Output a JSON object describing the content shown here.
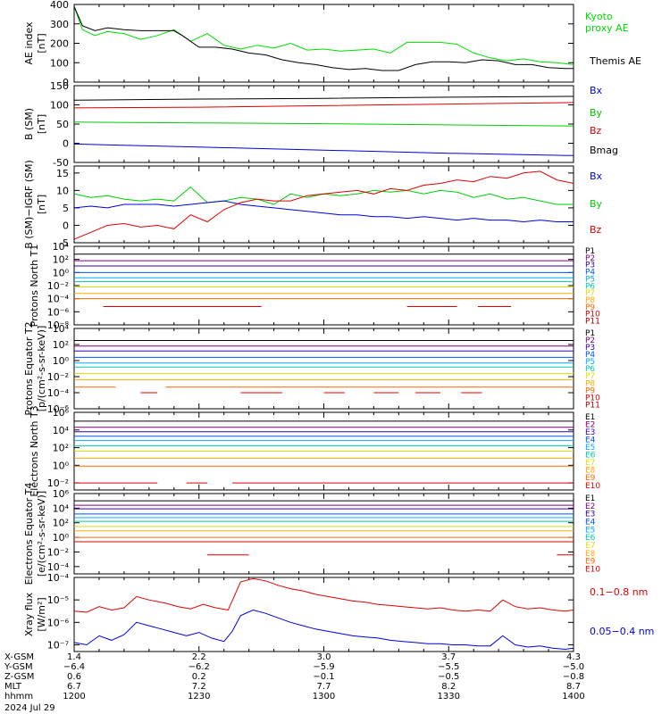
{
  "chart_data": [
    {
      "type": "line",
      "ylabel": "AE index [nT]",
      "yticks": [
        "400",
        "300",
        "200",
        "100",
        "0"
      ],
      "ylim": [
        0,
        400
      ],
      "legend": [
        "Kyoto proxy AE",
        "Themis AE"
      ],
      "series": [
        {
          "name": "Kyoto proxy AE",
          "color": "#00dd00",
          "x": [
            0,
            2,
            5,
            8,
            12,
            16,
            20,
            24,
            28,
            32,
            36,
            40,
            44,
            48,
            52,
            56,
            60,
            64,
            68,
            72,
            76,
            80,
            84,
            88,
            92,
            96,
            100,
            104,
            108,
            112,
            116,
            120
          ],
          "y": [
            390,
            270,
            240,
            260,
            250,
            220,
            240,
            270,
            210,
            250,
            190,
            170,
            190,
            175,
            200,
            165,
            170,
            160,
            165,
            170,
            150,
            205,
            205,
            205,
            195,
            150,
            125,
            110,
            120,
            105,
            100,
            90
          ]
        },
        {
          "name": "Themis AE",
          "color": "#000000",
          "x": [
            0,
            2,
            5,
            8,
            12,
            16,
            20,
            24,
            26,
            30,
            34,
            38,
            42,
            46,
            50,
            54,
            58,
            62,
            66,
            70,
            74,
            78,
            82,
            86,
            90,
            94,
            98,
            102,
            106,
            110,
            114,
            118,
            120
          ],
          "y": [
            390,
            290,
            265,
            280,
            270,
            265,
            265,
            265,
            240,
            180,
            180,
            170,
            150,
            140,
            115,
            100,
            90,
            75,
            65,
            70,
            60,
            60,
            90,
            105,
            105,
            100,
            115,
            110,
            90,
            90,
            75,
            70,
            70
          ]
        }
      ]
    },
    {
      "type": "line",
      "ylabel": "B (SM) [nT]",
      "yticks": [
        "150",
        "100",
        "50",
        "0",
        "-50"
      ],
      "ylim": [
        -50,
        150
      ],
      "legend": [
        "Bx",
        "By",
        "Bz",
        "Bmag"
      ],
      "series": [
        {
          "name": "Bmag",
          "color": "#000000",
          "x": [
            0,
            30,
            60,
            90,
            120
          ],
          "y": [
            112,
            115,
            117,
            120,
            122
          ]
        },
        {
          "name": "Bz",
          "color": "#dd0000",
          "x": [
            0,
            30,
            60,
            90,
            120
          ],
          "y": [
            92,
            94,
            98,
            102,
            106
          ]
        },
        {
          "name": "By",
          "color": "#00cc00",
          "x": [
            0,
            30,
            60,
            90,
            120
          ],
          "y": [
            55,
            53,
            51,
            48,
            45
          ]
        },
        {
          "name": "Bx",
          "color": "#0000dd",
          "x": [
            0,
            30,
            60,
            90,
            120
          ],
          "y": [
            -2,
            -10,
            -18,
            -26,
            -32
          ]
        }
      ]
    },
    {
      "type": "line",
      "ylabel": "B (SM)−IGRF (SM) [nT]",
      "yticks": [
        "15",
        "10",
        "5",
        "0",
        "-5"
      ],
      "ylim": [
        -5,
        17
      ],
      "legend": [
        "Bx",
        "By",
        "Bz"
      ],
      "series": [
        {
          "name": "By",
          "color": "#00cc00",
          "x": [
            0,
            4,
            8,
            12,
            16,
            20,
            24,
            28,
            32,
            36,
            40,
            44,
            48,
            52,
            56,
            60,
            64,
            68,
            72,
            76,
            80,
            84,
            88,
            92,
            96,
            100,
            104,
            108,
            112,
            116,
            120
          ],
          "y": [
            9,
            8,
            8.5,
            7.5,
            7,
            7.5,
            7,
            11,
            6.5,
            7,
            8,
            7.5,
            6,
            9,
            8,
            9,
            8.5,
            9,
            10,
            9.5,
            10,
            9,
            10,
            9.5,
            8,
            9,
            7.5,
            8,
            7,
            6,
            6
          ]
        },
        {
          "name": "Bx",
          "color": "#0000dd",
          "x": [
            0,
            4,
            8,
            12,
            16,
            20,
            24,
            28,
            32,
            36,
            40,
            44,
            48,
            52,
            56,
            60,
            64,
            68,
            72,
            76,
            80,
            84,
            88,
            92,
            96,
            100,
            104,
            108,
            112,
            116,
            120
          ],
          "y": [
            5,
            5.5,
            5,
            6,
            6,
            6,
            5.5,
            6,
            6.5,
            7,
            6,
            5.5,
            5,
            4.5,
            4,
            3.5,
            3,
            3,
            2.5,
            2.5,
            2,
            2.5,
            2,
            1.5,
            2,
            1.5,
            1.5,
            1,
            1.5,
            1,
            1
          ]
        },
        {
          "name": "Bz",
          "color": "#dd0000",
          "x": [
            0,
            4,
            8,
            12,
            16,
            20,
            24,
            28,
            32,
            36,
            40,
            44,
            48,
            52,
            56,
            60,
            64,
            68,
            72,
            76,
            80,
            84,
            88,
            92,
            96,
            100,
            104,
            108,
            112,
            116,
            120
          ],
          "y": [
            -4,
            -2,
            0,
            0.5,
            -0.5,
            0,
            -1,
            3,
            1,
            4.5,
            6.5,
            7.5,
            7,
            7,
            8.5,
            9,
            9.5,
            10,
            9,
            10.5,
            10,
            11.5,
            12,
            13,
            12.5,
            14,
            13.5,
            15,
            15.5,
            13,
            12
          ]
        }
      ]
    },
    {
      "type": "line",
      "ylabel": "Protons North T1",
      "yscale": "log",
      "yticks": [
        "10⁴",
        "10²",
        "10⁰",
        "10⁻²",
        "10⁻⁴",
        "10⁻⁶",
        "10⁻⁸"
      ],
      "ylim": [
        -8,
        4
      ],
      "legend": [
        "P1",
        "P2",
        "P3",
        "P4",
        "P5",
        "P6",
        "P7",
        "P8",
        "P9",
        "P10",
        "P11"
      ],
      "series": [
        {
          "name": "P1",
          "color": "#000000",
          "y_exp": 2.8
        },
        {
          "name": "P2",
          "color": "#7a007a",
          "y_exp": 1.8
        },
        {
          "name": "P3",
          "color": "#3300aa",
          "y_exp": 1.0
        },
        {
          "name": "P4",
          "color": "#0055ff",
          "y_exp": 0.0
        },
        {
          "name": "P5",
          "color": "#00aaff",
          "y_exp": -0.8
        },
        {
          "name": "P6",
          "color": "#00ccaa",
          "y_exp": -1.4
        },
        {
          "name": "P7",
          "color": "#dddd00",
          "y_exp": -2.2
        },
        {
          "name": "P8",
          "color": "#ffaa00",
          "y_exp": -3.2
        },
        {
          "name": "P9",
          "color": "#ff6600",
          "y_exp": -4.0
        },
        {
          "name": "P10",
          "color": "#dd0000",
          "y_exp": -5.2,
          "segments": [
            [
              7,
              45
            ],
            [
              80,
              92
            ],
            [
              97,
              105
            ]
          ]
        },
        {
          "name": "P11",
          "color": "#aa0000",
          "y_exp": -7.5,
          "segments": []
        }
      ]
    },
    {
      "type": "line",
      "ylabel": "Protons Equator T2 [p/(cm²-s-sr-keV)]",
      "yscale": "log",
      "yticks": [
        "10⁴",
        "10²",
        "10⁰",
        "10⁻²",
        "10⁻⁴",
        "10⁻⁶"
      ],
      "ylim": [
        -6,
        4
      ],
      "legend": [
        "P1",
        "P2",
        "P3",
        "P4",
        "P5",
        "P6",
        "P7",
        "P8",
        "P9",
        "P10",
        "P11"
      ],
      "series": [
        {
          "name": "P1",
          "color": "#000000",
          "y_exp": 2.5
        },
        {
          "name": "P2",
          "color": "#7a007a",
          "y_exp": 1.8
        },
        {
          "name": "P3",
          "color": "#3300aa",
          "y_exp": 1.2
        },
        {
          "name": "P4",
          "color": "#0055ff",
          "y_exp": 0.4
        },
        {
          "name": "P5",
          "color": "#00aaff",
          "y_exp": -0.3
        },
        {
          "name": "P6",
          "color": "#00ccaa",
          "y_exp": -0.8
        },
        {
          "name": "P7",
          "color": "#dddd00",
          "y_exp": -1.6
        },
        {
          "name": "P8",
          "color": "#ffaa00",
          "y_exp": -2.4
        },
        {
          "name": "P9",
          "color": "#ff6600",
          "y_exp": -3.3,
          "segments": [
            [
              0,
              10
            ],
            [
              22,
              120
            ]
          ]
        },
        {
          "name": "P10",
          "color": "#dd0000",
          "y_exp": -4.0,
          "segments": [
            [
              16,
              20
            ],
            [
              40,
              50
            ],
            [
              60,
              65
            ],
            [
              72,
              78
            ],
            [
              82,
              88
            ],
            [
              93,
              98
            ]
          ]
        },
        {
          "name": "P11",
          "color": "#aa0000",
          "y_exp": -6.5,
          "segments": []
        }
      ]
    },
    {
      "type": "line",
      "ylabel": "Electrons North T3",
      "yscale": "log",
      "yticks": [
        "10⁶",
        "10⁴",
        "10²",
        "10⁰",
        "10⁻²"
      ],
      "ylim": [
        -2.8,
        6
      ],
      "legend": [
        "E1",
        "E2",
        "E3",
        "E4",
        "E5",
        "E6",
        "E7",
        "E8",
        "E9",
        "E10"
      ],
      "series": [
        {
          "name": "E1",
          "color": "#000000",
          "y_exp": 5.0
        },
        {
          "name": "E2",
          "color": "#7a007a",
          "y_exp": 4.3
        },
        {
          "name": "E3",
          "color": "#3300aa",
          "y_exp": 3.8
        },
        {
          "name": "E4",
          "color": "#0055ff",
          "y_exp": 3.3
        },
        {
          "name": "E5",
          "color": "#00aaff",
          "y_exp": 2.8
        },
        {
          "name": "E6",
          "color": "#00ccaa",
          "y_exp": 2.2
        },
        {
          "name": "E7",
          "color": "#dddd00",
          "y_exp": 1.6
        },
        {
          "name": "E8",
          "color": "#ffaa00",
          "y_exp": 0.8
        },
        {
          "name": "E9",
          "color": "#ff6600",
          "y_exp": -0.1
        },
        {
          "name": "E10",
          "color": "#dd0000",
          "y_exp": -2.0,
          "segments": [
            [
              0,
              20
            ],
            [
              27,
              32
            ],
            [
              38,
              120
            ]
          ]
        }
      ]
    },
    {
      "type": "line",
      "ylabel": "Electrons Equator T4 [e/(cm²-s-sr-keV)]",
      "yscale": "log",
      "yticks": [
        "10⁶",
        "10⁴",
        "10²",
        "10⁰",
        "10⁻²",
        "10⁻⁴"
      ],
      "ylim": [
        -5,
        6
      ],
      "legend": [
        "E1",
        "E2",
        "E3",
        "E4",
        "E5",
        "E6",
        "E7",
        "E8",
        "E9",
        "E10"
      ],
      "series": [
        {
          "name": "E1",
          "color": "#000000",
          "y_exp": 5.0
        },
        {
          "name": "E2",
          "color": "#7a007a",
          "y_exp": 4.4
        },
        {
          "name": "E3",
          "color": "#3300aa",
          "y_exp": 3.9
        },
        {
          "name": "E4",
          "color": "#0055ff",
          "y_exp": 3.2
        },
        {
          "name": "E5",
          "color": "#00aaff",
          "y_exp": 2.7
        },
        {
          "name": "E6",
          "color": "#00ccaa",
          "y_exp": 2.2
        },
        {
          "name": "E7",
          "color": "#dddd00",
          "y_exp": 1.5
        },
        {
          "name": "E8",
          "color": "#ffaa00",
          "y_exp": 0.9
        },
        {
          "name": "E9",
          "color": "#ff6600",
          "y_exp": 0.0
        },
        {
          "name": "E10",
          "color": "#dd0000",
          "y_exp": -0.6,
          "segments": [
            [
              0,
              120
            ]
          ]
        },
        {
          "name": "E10-drop",
          "color": "#dd0000",
          "y_exp": -2.4,
          "segments": [
            [
              32,
              42
            ],
            [
              116,
              120
            ]
          ]
        }
      ]
    },
    {
      "type": "line",
      "ylabel": "Xray flux [W/m²]",
      "yscale": "log",
      "yticks": [
        "10⁻⁴",
        "10⁻⁵",
        "10⁻⁶",
        "10⁻⁷"
      ],
      "ylim": [
        -7.3,
        -4.0
      ],
      "legend": [
        "0.1−0.8 nm",
        "0.05−0.4 nm"
      ],
      "series": [
        {
          "name": "0.1−0.8 nm",
          "color": "#dd0000",
          "x": [
            0,
            3,
            6,
            9,
            12,
            15,
            18,
            22,
            25,
            28,
            31,
            34,
            37,
            40,
            43,
            46,
            49,
            52,
            55,
            58,
            61,
            64,
            67,
            70,
            73,
            76,
            79,
            82,
            85,
            88,
            91,
            94,
            97,
            100,
            103,
            106,
            109,
            112,
            115,
            118,
            120
          ],
          "y": [
            -5.5,
            -5.55,
            -5.3,
            -5.45,
            -5.35,
            -4.85,
            -5.0,
            -5.15,
            -5.3,
            -5.4,
            -5.2,
            -5.35,
            -5.45,
            -4.2,
            -4.05,
            -4.15,
            -4.35,
            -4.5,
            -4.6,
            -4.75,
            -4.85,
            -4.95,
            -5.05,
            -5.1,
            -5.2,
            -5.25,
            -5.3,
            -5.35,
            -5.4,
            -5.35,
            -5.45,
            -5.5,
            -5.45,
            -5.5,
            -5.0,
            -5.3,
            -5.4,
            -5.35,
            -5.45,
            -5.5,
            -5.45
          ]
        },
        {
          "name": "0.05−0.4 nm",
          "color": "#0000dd",
          "x": [
            0,
            3,
            6,
            9,
            12,
            15,
            18,
            21,
            24,
            27,
            30,
            33,
            36,
            38,
            40,
            43,
            46,
            49,
            52,
            55,
            58,
            61,
            64,
            67,
            70,
            73,
            76,
            79,
            82,
            85,
            88,
            91,
            94,
            97,
            100,
            103,
            106,
            109,
            112,
            115,
            118,
            120
          ],
          "y": [
            -6.9,
            -7.0,
            -6.6,
            -6.8,
            -6.55,
            -6.0,
            -6.15,
            -6.3,
            -6.45,
            -6.6,
            -6.45,
            -6.7,
            -6.85,
            -6.4,
            -5.7,
            -5.45,
            -5.6,
            -5.8,
            -6.0,
            -6.15,
            -6.3,
            -6.4,
            -6.5,
            -6.6,
            -6.65,
            -6.7,
            -6.8,
            -6.85,
            -6.9,
            -6.95,
            -6.95,
            -7.0,
            -7.0,
            -7.05,
            -7.05,
            -6.6,
            -7.0,
            -7.1,
            -7.05,
            -7.15,
            -7.2,
            -7.15
          ]
        }
      ]
    }
  ],
  "xaxis": {
    "rows": [
      {
        "label": "X-GSM",
        "values": [
          "1.4",
          "2.2",
          "3.0",
          "3.7",
          "4.3"
        ]
      },
      {
        "label": "Y-GSM",
        "values": [
          "−6.4",
          "−6.2",
          "−5.9",
          "−5.5",
          "−5.0"
        ]
      },
      {
        "label": "Z-GSM",
        "values": [
          "0.6",
          "0.2",
          "−0.1",
          "−0.5",
          "−0.8"
        ]
      },
      {
        "label": "MLT",
        "values": [
          "6.7",
          "7.2",
          "7.7",
          "8.2",
          "8.7"
        ]
      },
      {
        "label": "hhmm",
        "values": [
          "1200",
          "1230",
          "1300",
          "1330",
          "1400"
        ]
      }
    ],
    "date": "2024 Jul 29",
    "range_minutes": [
      0,
      120
    ]
  }
}
